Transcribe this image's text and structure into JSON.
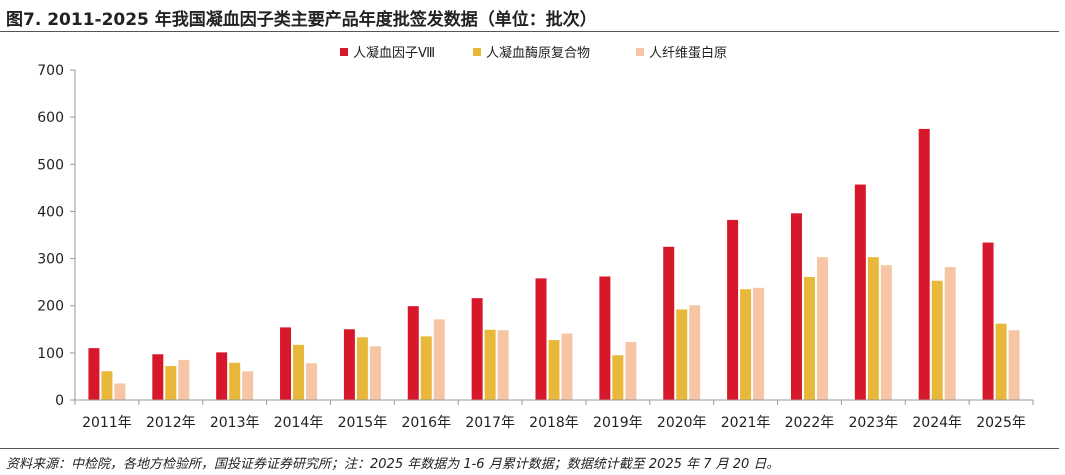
{
  "title": "图7. 2011-2025 年我国凝血因子类主要产品年度批签发数据（单位：批次）",
  "source": "资料来源：中检院，各地方检验所，国投证券证券研究所；注：2025 年数据为 1-6 月累计数据；数据统计截至 2025 年 7 月 20 日。",
  "chart_data": {
    "type": "bar",
    "title": "图7. 2011-2025 年我国凝血因子类主要产品年度批签发数据（单位：批次）",
    "xlabel": "",
    "ylabel": "",
    "ylim": [
      0,
      700
    ],
    "yticks": [
      0,
      100,
      200,
      300,
      400,
      500,
      600,
      700
    ],
    "grid": false,
    "legend_position": "top-center",
    "categories": [
      "2011年",
      "2012年",
      "2013年",
      "2014年",
      "2015年",
      "2016年",
      "2017年",
      "2018年",
      "2019年",
      "2020年",
      "2021年",
      "2022年",
      "2023年",
      "2024年",
      "2025年"
    ],
    "series": [
      {
        "name": "人凝血因子Ⅷ",
        "color": "#d7182a",
        "values": [
          110,
          97,
          101,
          154,
          150,
          199,
          216,
          258,
          262,
          325,
          382,
          396,
          457,
          575,
          334
        ]
      },
      {
        "name": "人凝血酶原复合物",
        "color": "#e8b83a",
        "values": [
          61,
          72,
          79,
          117,
          133,
          135,
          149,
          127,
          95,
          192,
          235,
          261,
          303,
          253,
          162
        ]
      },
      {
        "name": "人纤维蛋白原",
        "color": "#f6c5a6",
        "values": [
          35,
          85,
          61,
          78,
          114,
          171,
          148,
          141,
          123,
          201,
          238,
          303,
          286,
          282,
          148
        ]
      }
    ]
  }
}
